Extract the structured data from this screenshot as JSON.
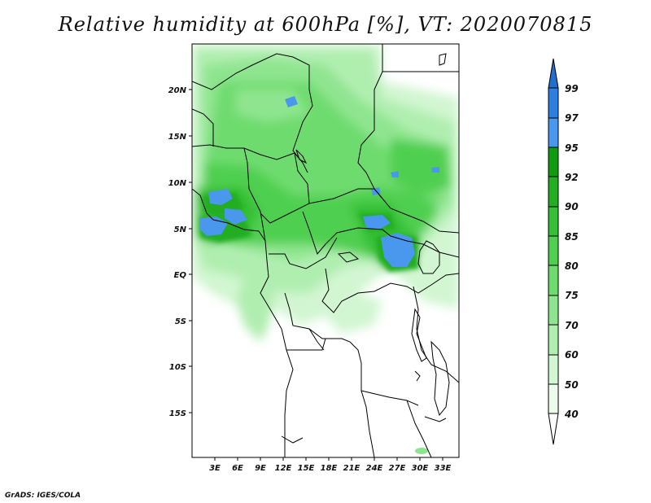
{
  "title": "Relative humidity at 600hPa [%], VT: 2020070815",
  "credit": "GrADS: IGES/COLA",
  "map": {
    "lat_labels": [
      "20N",
      "15N",
      "10N",
      "5N",
      "EQ",
      "5S",
      "10S",
      "15S"
    ],
    "lon_labels": [
      "3E",
      "6E",
      "9E",
      "12E",
      "15E",
      "18E",
      "21E",
      "24E",
      "27E",
      "30E",
      "33E"
    ],
    "region": "Central Africa"
  },
  "colorbar": {
    "levels": [
      "99",
      "97",
      "95",
      "92",
      "90",
      "85",
      "80",
      "75",
      "70",
      "60",
      "50",
      "40"
    ],
    "colors": {
      "above_99": "#1f6fd1",
      "97_99": "#2f7fe0",
      "95_97": "#4a97ee",
      "92_95": "#109a10",
      "90_92": "#22ad22",
      "85_90": "#36bf36",
      "80_85": "#4fcf4f",
      "75_80": "#6edb6e",
      "70_75": "#8fe58f",
      "60_70": "#b0eeb0",
      "50_60": "#d2f6d2",
      "40_50": "#ecfbec",
      "below_40": "#ffffff"
    }
  }
}
